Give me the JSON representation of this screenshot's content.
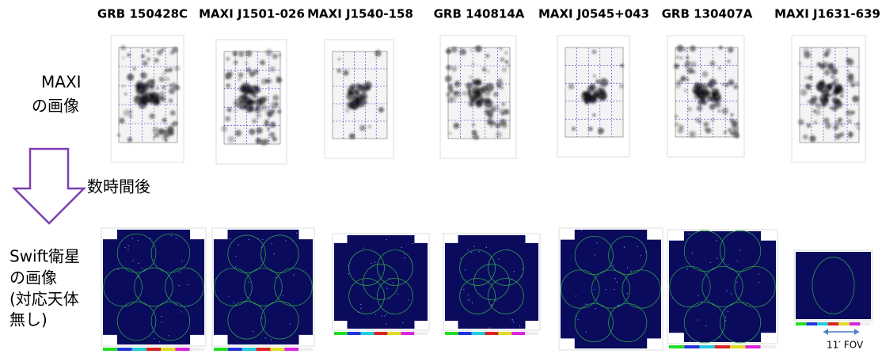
{
  "columns": [
    "GRB 150428C",
    "MAXI J1501-026",
    "MAXI J1540-158",
    "GRB 140814A",
    "MAXI J0545+043",
    "GRB 130407A",
    "MAXI J1631-639"
  ],
  "maxi_label": [
    "MAXI",
    "の画像"
  ],
  "arrow_label": "数時間後",
  "swift_label": [
    "Swift衛星",
    "の画像",
    "(対応天体",
    "無し)"
  ],
  "fov_label": "11′ FOV"
}
